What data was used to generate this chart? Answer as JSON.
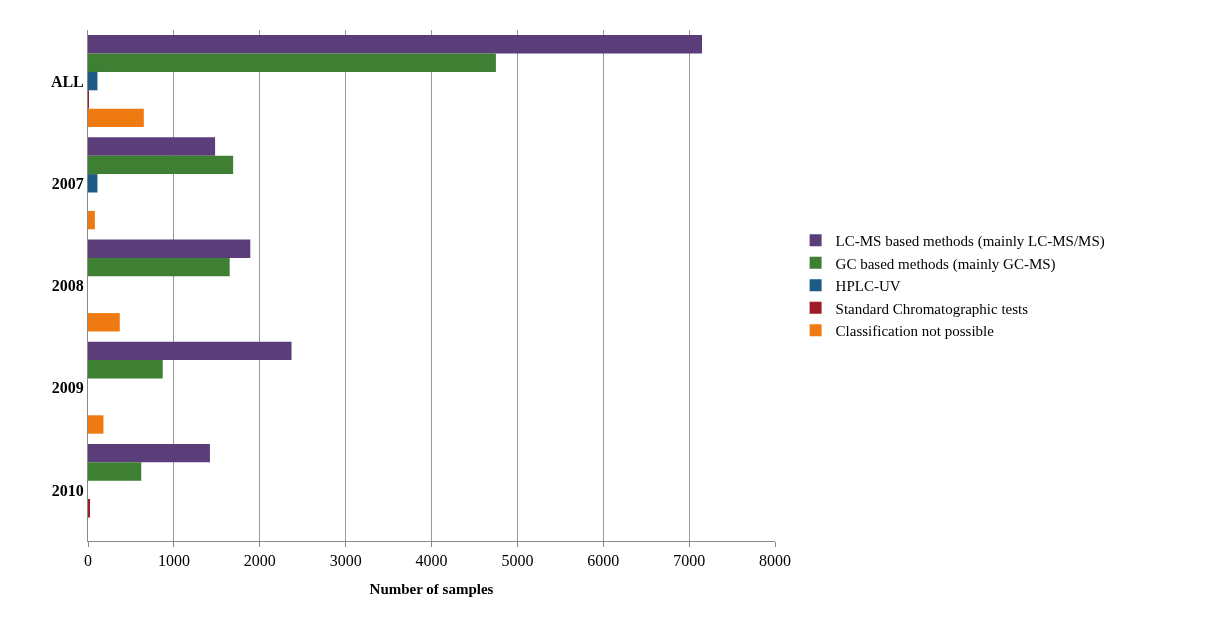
{
  "chart_data": {
    "type": "bar",
    "orientation": "horizontal",
    "xlabel": "Number of samples",
    "categories": [
      "ALL",
      "2007",
      "2008",
      "2009",
      "2010"
    ],
    "series": [
      {
        "name": "LC-MS based methods (mainly LC-MS/MS)",
        "color": "#5b3d7a",
        "values": [
          7150,
          1480,
          1890,
          2370,
          1420
        ]
      },
      {
        "name": "GC based methods (mainly GC-MS)",
        "color": "#3f7f34",
        "values": [
          4750,
          1690,
          1650,
          870,
          620
        ]
      },
      {
        "name": "HPLC-UV",
        "color": "#1d5a85",
        "values": [
          110,
          110,
          0,
          0,
          0
        ]
      },
      {
        "name": "Standard Chromatographic tests",
        "color": "#9e1b2a",
        "values": [
          10,
          0,
          0,
          0,
          20
        ]
      },
      {
        "name": "Classification not possible",
        "color": "#f07a12",
        "values": [
          650,
          80,
          370,
          180,
          0
        ]
      }
    ],
    "xlim": [
      0,
      8000
    ],
    "xticks": [
      0,
      1000,
      2000,
      3000,
      4000,
      5000,
      6000,
      7000,
      8000
    ],
    "grid": "x",
    "legend": "right"
  }
}
